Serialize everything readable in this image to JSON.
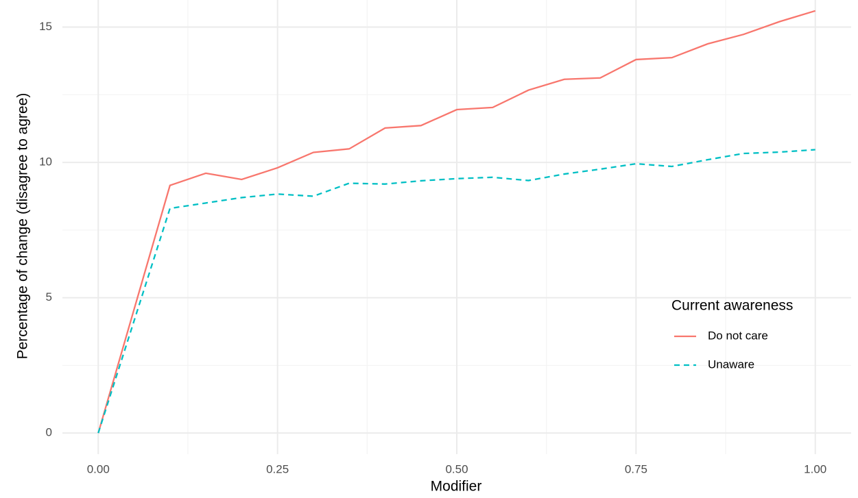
{
  "chart_data": {
    "type": "line",
    "x_label": "Modifier",
    "y_label": "Percentage of change (disagree to agree)",
    "x": [
      0,
      0.1,
      0.15,
      0.2,
      0.25,
      0.3,
      0.35,
      0.4,
      0.45,
      0.5,
      0.55,
      0.6,
      0.65,
      0.7,
      0.75,
      0.8,
      0.85,
      0.9,
      0.95,
      1.0
    ],
    "series": [
      {
        "name": "Do not care",
        "color": "#F8766D",
        "linestyle": "solid",
        "values": [
          0,
          9.15,
          9.6,
          9.37,
          9.8,
          10.37,
          10.5,
          11.27,
          11.36,
          11.95,
          12.03,
          12.67,
          13.07,
          13.12,
          13.8,
          13.87,
          14.38,
          14.73,
          15.2,
          15.6
        ]
      },
      {
        "name": "Unaware",
        "color": "#00BFC4",
        "linestyle": "dashed",
        "values": [
          0,
          8.3,
          8.5,
          8.7,
          8.83,
          8.75,
          9.23,
          9.2,
          9.32,
          9.4,
          9.45,
          9.33,
          9.57,
          9.75,
          9.95,
          9.85,
          10.1,
          10.33,
          10.38,
          10.47
        ]
      }
    ],
    "legend_title": "Current awareness",
    "legend_position": "lower right",
    "xlim": [
      -0.05,
      1.05
    ],
    "ylim": [
      -0.78,
      16.0
    ],
    "xticks": [
      {
        "value": 0,
        "label": "0.00"
      },
      {
        "value": 0.25,
        "label": "0.25"
      },
      {
        "value": 0.5,
        "label": "0.50"
      },
      {
        "value": 0.75,
        "label": "0.75"
      },
      {
        "value": 1,
        "label": "1.00"
      }
    ],
    "yticks": [
      0,
      5,
      10,
      15
    ],
    "grid": true
  }
}
